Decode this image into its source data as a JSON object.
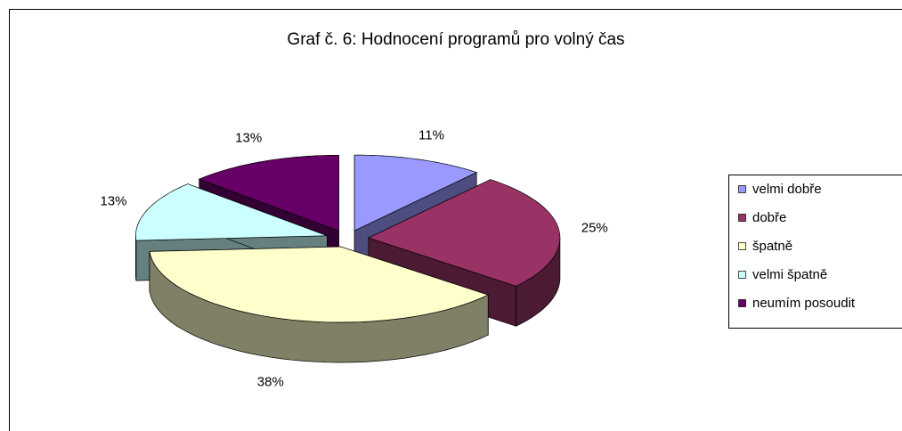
{
  "chart_data": {
    "type": "pie",
    "title": "Graf č. 6: Hodnocení programů pro volný čas",
    "categories": [
      "velmi dobře",
      "dobře",
      "špatně",
      "velmi špatně",
      "neumím posoudit"
    ],
    "values": [
      11,
      25,
      38,
      13,
      13
    ],
    "value_labels": [
      "11%",
      "25%",
      "38%",
      "13%",
      "13%"
    ],
    "colors": [
      "#9999ff",
      "#993366",
      "#ffffcc",
      "#ccffff",
      "#660066"
    ],
    "legend": "right"
  }
}
